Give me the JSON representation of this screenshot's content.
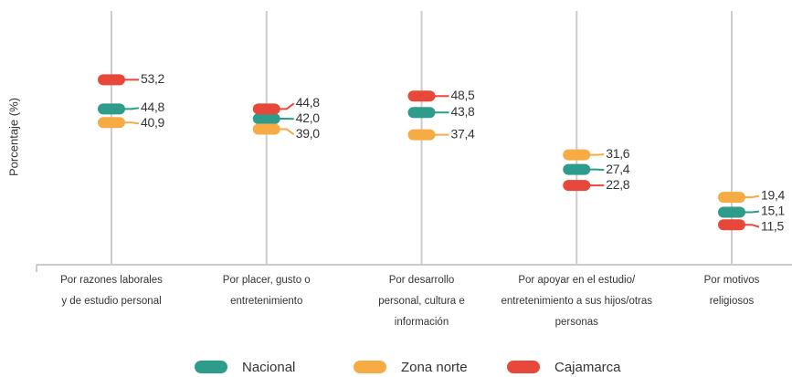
{
  "chart_data": {
    "type": "dot",
    "y_label": "Porcentaje (%)",
    "categories": [
      [
        "Por razones laborales",
        "y de estudio personal"
      ],
      [
        "Por placer, gusto o",
        "entretenimiento"
      ],
      [
        "Por desarrollo",
        "personal, cultura e",
        "información"
      ],
      [
        "Por apoyar en el estudio/",
        "entretenimiento a sus hijos/otras",
        "personas"
      ],
      [
        "Por motivos",
        "religiosos"
      ]
    ],
    "series": [
      {
        "name": "Nacional",
        "color": "#2e9c8a",
        "values": [
          44.8,
          42.0,
          43.8,
          27.4,
          15.1
        ],
        "value_labels": [
          "44,8",
          "42,0",
          "43,8",
          "27,4",
          "15,1"
        ]
      },
      {
        "name": "Zona norte",
        "color": "#f7ab45",
        "values": [
          40.9,
          39.0,
          37.4,
          31.6,
          19.4
        ],
        "value_labels": [
          "40,9",
          "39,0",
          "37,4",
          "31,6",
          "19,4"
        ]
      },
      {
        "name": "Cajamarca",
        "color": "#e8483a",
        "values": [
          53.2,
          44.8,
          48.5,
          22.8,
          11.5
        ],
        "value_labels": [
          "53,2",
          "44,8",
          "48,5",
          "22,8",
          "11,5"
        ]
      }
    ],
    "ylim": [
      0,
      73
    ]
  }
}
